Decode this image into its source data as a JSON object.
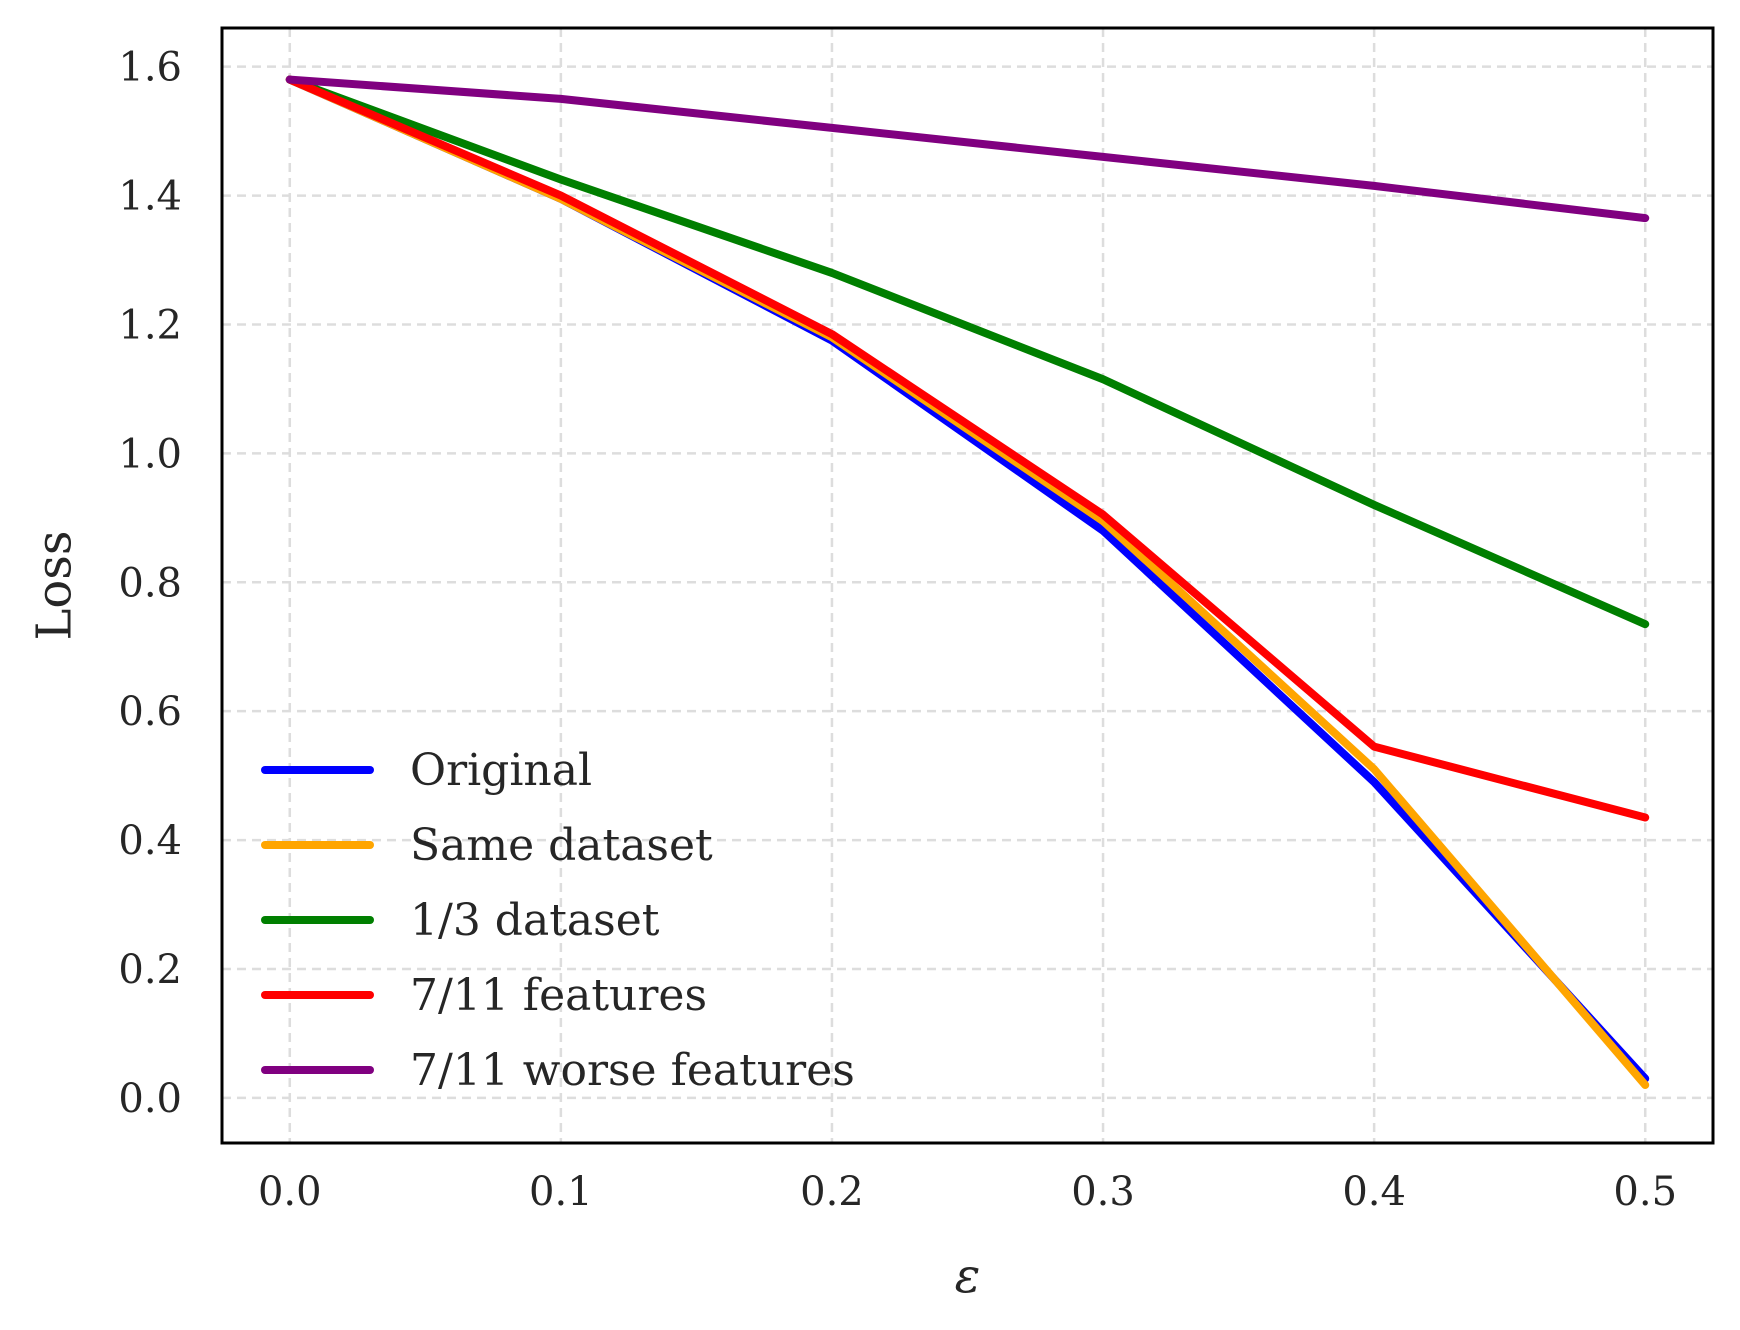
{
  "chart_data": {
    "type": "line",
    "title": "",
    "xlabel": "ε",
    "ylabel": "Loss",
    "x": [
      0.0,
      0.1,
      0.2,
      0.3,
      0.4,
      0.5
    ],
    "xticks": [
      "0.0",
      "0.1",
      "0.2",
      "0.3",
      "0.4",
      "0.5"
    ],
    "yticks": [
      "0.0",
      "0.2",
      "0.4",
      "0.6",
      "0.8",
      "1.0",
      "1.2",
      "1.4",
      "1.6"
    ],
    "xlim": [
      -0.025,
      0.525
    ],
    "ylim": [
      -0.07,
      1.66
    ],
    "grid": true,
    "legend_position": "lower-left",
    "series": [
      {
        "name": "Original",
        "color": "#0000ff",
        "values": [
          1.58,
          1.395,
          1.175,
          0.88,
          0.49,
          0.03
        ]
      },
      {
        "name": "Same dataset",
        "color": "#ffa500",
        "values": [
          1.58,
          1.395,
          1.18,
          0.895,
          0.51,
          0.02
        ]
      },
      {
        "name": "1/3 dataset",
        "color": "#007f00",
        "values": [
          1.58,
          1.425,
          1.28,
          1.115,
          0.92,
          0.735
        ]
      },
      {
        "name": "7/11 features",
        "color": "#ff0000",
        "values": [
          1.58,
          1.4,
          1.185,
          0.905,
          0.545,
          0.435
        ]
      },
      {
        "name": "7/11 worse features",
        "color": "#800080",
        "values": [
          1.58,
          1.55,
          1.505,
          1.46,
          1.415,
          1.365
        ]
      }
    ]
  }
}
